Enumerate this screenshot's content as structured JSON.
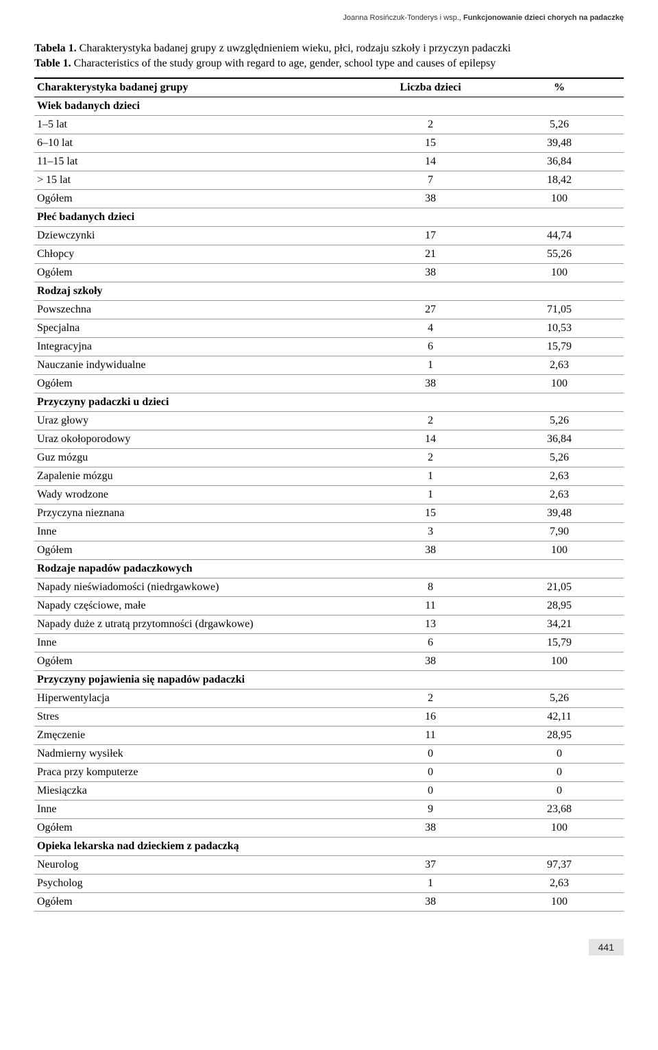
{
  "runhead": {
    "authors": "Joanna Rosińczuk-Tonderys i wsp., ",
    "title": "Funkcjonowanie dzieci chorych na padaczkę"
  },
  "caption": {
    "pl_label": "Tabela 1.",
    "pl_text": " Charakterystyka badanej grupy z uwzględnieniem wieku, płci, rodzaju szkoły i przyczyn padaczki",
    "en_label": "Table 1.",
    "en_text": " Characteristics of the study group with regard to age, gender, school type and causes of epilepsy"
  },
  "table": {
    "headers": [
      "Charakterystyka badanej grupy",
      "Liczba dzieci",
      "%"
    ],
    "sections": [
      {
        "title": "Wiek badanych dzieci",
        "rows": [
          {
            "l": "1–5 lat",
            "n": "2",
            "p": "5,26"
          },
          {
            "l": "6–10 lat",
            "n": "15",
            "p": "39,48"
          },
          {
            "l": "11–15 lat",
            "n": "14",
            "p": "36,84"
          },
          {
            "l": "> 15 lat",
            "n": "7",
            "p": "18,42"
          },
          {
            "l": "Ogółem",
            "n": "38",
            "p": "100"
          }
        ]
      },
      {
        "title": "Płeć badanych dzieci",
        "rows": [
          {
            "l": "Dziewczynki",
            "n": "17",
            "p": "44,74"
          },
          {
            "l": "Chłopcy",
            "n": "21",
            "p": "55,26"
          },
          {
            "l": "Ogółem",
            "n": "38",
            "p": "100"
          }
        ]
      },
      {
        "title": "Rodzaj szkoły",
        "rows": [
          {
            "l": "Powszechna",
            "n": "27",
            "p": "71,05"
          },
          {
            "l": "Specjalna",
            "n": "4",
            "p": "10,53"
          },
          {
            "l": "Integracyjna",
            "n": "6",
            "p": "15,79"
          },
          {
            "l": "Nauczanie indywidualne",
            "n": "1",
            "p": "2,63"
          },
          {
            "l": "Ogółem",
            "n": "38",
            "p": "100"
          }
        ]
      },
      {
        "title": "Przyczyny padaczki u dzieci",
        "rows": [
          {
            "l": "Uraz głowy",
            "n": "2",
            "p": "5,26"
          },
          {
            "l": "Uraz okołoporodowy",
            "n": "14",
            "p": "36,84"
          },
          {
            "l": "Guz mózgu",
            "n": "2",
            "p": "5,26"
          },
          {
            "l": "Zapalenie mózgu",
            "n": "1",
            "p": "2,63"
          },
          {
            "l": "Wady wrodzone",
            "n": "1",
            "p": "2,63"
          },
          {
            "l": "Przyczyna nieznana",
            "n": "15",
            "p": "39,48"
          },
          {
            "l": "Inne",
            "n": "3",
            "p": "7,90"
          },
          {
            "l": "Ogółem",
            "n": "38",
            "p": "100"
          }
        ]
      },
      {
        "title": "Rodzaje napadów padaczkowych",
        "rows": [
          {
            "l": "Napady nieświadomości (niedrgawkowe)",
            "n": "8",
            "p": "21,05"
          },
          {
            "l": "Napady częściowe, małe",
            "n": "11",
            "p": "28,95"
          },
          {
            "l": "Napady duże z utratą przytomności (drgawkowe)",
            "n": "13",
            "p": "34,21"
          },
          {
            "l": "Inne",
            "n": "6",
            "p": "15,79"
          },
          {
            "l": "Ogółem",
            "n": "38",
            "p": "100"
          }
        ]
      },
      {
        "title": "Przyczyny pojawienia się napadów padaczki",
        "rows": [
          {
            "l": "Hiperwentylacja",
            "n": "2",
            "p": "5,26"
          },
          {
            "l": "Stres",
            "n": "16",
            "p": "42,11"
          },
          {
            "l": "Zmęczenie",
            "n": "11",
            "p": "28,95"
          },
          {
            "l": "Nadmierny wysiłek",
            "n": "0",
            "p": "0"
          },
          {
            "l": "Praca przy komputerze",
            "n": "0",
            "p": "0"
          },
          {
            "l": "Miesiączka",
            "n": "0",
            "p": "0"
          },
          {
            "l": "Inne",
            "n": "9",
            "p": "23,68"
          },
          {
            "l": "Ogółem",
            "n": "38",
            "p": "100"
          }
        ]
      },
      {
        "title": "Opieka lekarska nad dzieckiem z padaczką",
        "rows": [
          {
            "l": "Neurolog",
            "n": "37",
            "p": "97,37"
          },
          {
            "l": "Psycholog",
            "n": "1",
            "p": "2,63"
          },
          {
            "l": "Ogółem",
            "n": "38",
            "p": "100"
          }
        ]
      }
    ]
  },
  "page_number": "441",
  "style": {
    "header_border_top": "#000000",
    "header_border_bottom": "#000000",
    "row_border": "#9a9a9a",
    "body_font": "Times New Roman",
    "runhead_font": "Arial",
    "body_font_size_pt": 12,
    "runhead_font_size_pt": 8,
    "pagenum_bg": "#e3e3e3"
  }
}
